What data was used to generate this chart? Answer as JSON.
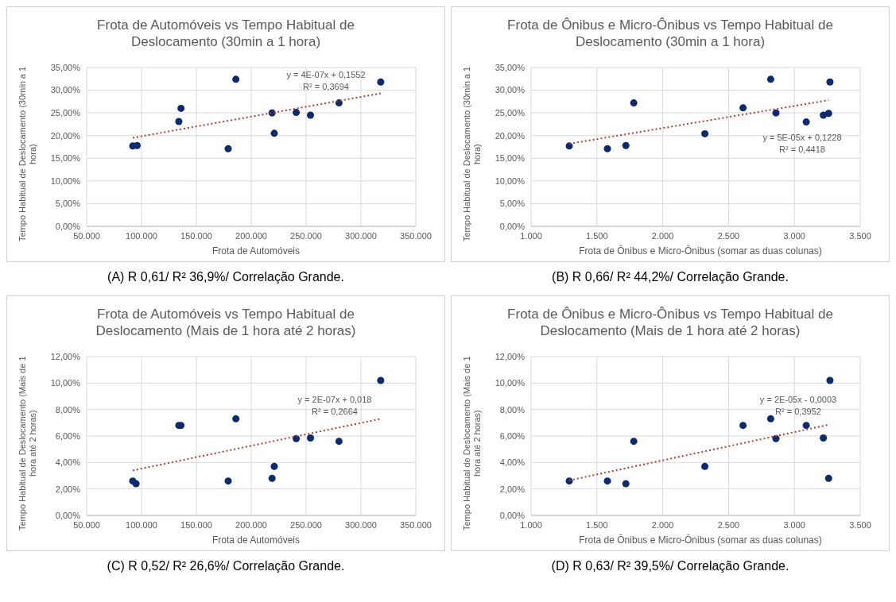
{
  "chart_data": [
    {
      "type": "scatter",
      "title": "Frota de Automóveis vs Tempo Habitual de Deslocamento (30min a 1 hora)",
      "xlabel": "Frota de Automóveis",
      "ylabel": "Tempo Habitual de Deslocamento (30min a 1 hora)",
      "grid": true,
      "xlim": [
        50000,
        350000
      ],
      "xticks": [
        {
          "value": 50000,
          "label": "50.000"
        },
        {
          "value": 100000,
          "label": "100.000"
        },
        {
          "value": 150000,
          "label": "150.000"
        },
        {
          "value": 200000,
          "label": "200.000"
        },
        {
          "value": 250000,
          "label": "250.000"
        },
        {
          "value": 300000,
          "label": "300.000"
        },
        {
          "value": 350000,
          "label": "350.000"
        }
      ],
      "ylim": [
        0,
        35
      ],
      "yticks": [
        {
          "value": 0,
          "label": "0,00%"
        },
        {
          "value": 5,
          "label": "5,00%"
        },
        {
          "value": 10,
          "label": "10,00%"
        },
        {
          "value": 15,
          "label": "15,00%"
        },
        {
          "value": 20,
          "label": "20,00%"
        },
        {
          "value": 25,
          "label": "25,00%"
        },
        {
          "value": 30,
          "label": "30,00%"
        },
        {
          "value": 35,
          "label": "35,00%"
        }
      ],
      "series": [
        {
          "marker": "circle",
          "color": "#0b2a6f",
          "x": [
            92000,
            96000,
            134000,
            136000,
            179000,
            186000,
            219000,
            221000,
            241000,
            254000,
            280000,
            318000
          ],
          "values": [
            17.7,
            17.8,
            23.1,
            26.0,
            17.1,
            32.4,
            25.0,
            20.5,
            25.1,
            24.5,
            27.2,
            31.8
          ]
        },
        {
          "type": "line",
          "line_style": "dotted",
          "color": "#c0392b",
          "x": [
            92000,
            318000
          ],
          "values": [
            19.5,
            29.3
          ]
        }
      ],
      "annotations": [
        "y = 4E-07x + 0,1552",
        "R² = 0,3694",
        "(A) R 0,61/ R² 36,9%/ Correlação Grande."
      ]
    },
    {
      "type": "scatter",
      "title": "Frota de Ônibus e Micro-Ônibus vs Tempo Habitual de Deslocamento (30min a 1 hora)",
      "xlabel": "Frota de Ônibus e Micro-Ônibus (somar as duas colunas)",
      "ylabel": "Tempo Habitual de Deslocamento (30min a 1 hora)",
      "grid": true,
      "xlim": [
        1000,
        3500
      ],
      "xticks": [
        {
          "value": 1000,
          "label": "1.000"
        },
        {
          "value": 1500,
          "label": "1.500"
        },
        {
          "value": 2000,
          "label": "2.000"
        },
        {
          "value": 2500,
          "label": "2.500"
        },
        {
          "value": 3000,
          "label": "3.000"
        },
        {
          "value": 3500,
          "label": "3.500"
        }
      ],
      "ylim": [
        0,
        35
      ],
      "yticks": [
        {
          "value": 0,
          "label": "0,00%"
        },
        {
          "value": 5,
          "label": "5,00%"
        },
        {
          "value": 10,
          "label": "10,00%"
        },
        {
          "value": 15,
          "label": "15,00%"
        },
        {
          "value": 20,
          "label": "20,00%"
        },
        {
          "value": 25,
          "label": "25,00%"
        },
        {
          "value": 30,
          "label": "30,00%"
        },
        {
          "value": 35,
          "label": "35,00%"
        }
      ],
      "series": [
        {
          "marker": "circle",
          "color": "#0b2a6f",
          "x": [
            1290,
            1580,
            1720,
            1780,
            2320,
            2610,
            2820,
            2860,
            3090,
            3220,
            3260,
            3270
          ],
          "values": [
            17.7,
            17.1,
            17.8,
            27.2,
            20.4,
            26.1,
            32.4,
            25.0,
            23.0,
            24.5,
            24.9,
            31.8
          ]
        },
        {
          "type": "line",
          "line_style": "dotted",
          "color": "#c0392b",
          "x": [
            1290,
            3260
          ],
          "values": [
            18.2,
            27.8
          ]
        }
      ],
      "annotations": [
        "y = 5E-05x + 0,1228",
        "R² = 0,4418",
        "(B) R 0,66/ R² 44,2%/ Correlação Grande."
      ]
    },
    {
      "type": "scatter",
      "title": "Frota de Automóveis vs Tempo Habitual de Deslocamento (Mais de 1 hora até 2 horas)",
      "xlabel": "Frota de Automóveis",
      "ylabel": "Tempo Habitual de Deslocamento (Mais de 1 hora até 2 horas)",
      "grid": true,
      "xlim": [
        50000,
        350000
      ],
      "xticks": [
        {
          "value": 50000,
          "label": "50.000"
        },
        {
          "value": 100000,
          "label": "100.000"
        },
        {
          "value": 150000,
          "label": "150.000"
        },
        {
          "value": 200000,
          "label": "200.000"
        },
        {
          "value": 250000,
          "label": "250.000"
        },
        {
          "value": 300000,
          "label": "300.000"
        },
        {
          "value": 350000,
          "label": "350.000"
        }
      ],
      "ylim": [
        0,
        12
      ],
      "yticks": [
        {
          "value": 0,
          "label": "0,00%"
        },
        {
          "value": 2,
          "label": "2,00%"
        },
        {
          "value": 4,
          "label": "4,00%"
        },
        {
          "value": 6,
          "label": "6,00%"
        },
        {
          "value": 8,
          "label": "8,00%"
        },
        {
          "value": 10,
          "label": "10,00%"
        },
        {
          "value": 12,
          "label": "12,00%"
        }
      ],
      "series": [
        {
          "marker": "circle",
          "color": "#0b2a6f",
          "x": [
            92000,
            95000,
            134000,
            136000,
            179000,
            186000,
            219000,
            221000,
            241000,
            254000,
            280000,
            318000
          ],
          "values": [
            2.6,
            2.4,
            6.8,
            6.8,
            2.6,
            7.3,
            2.8,
            3.7,
            5.8,
            5.85,
            5.6,
            10.2
          ]
        },
        {
          "type": "line",
          "line_style": "dotted",
          "color": "#c0392b",
          "x": [
            92000,
            318000
          ],
          "values": [
            3.4,
            7.3
          ]
        }
      ],
      "annotations": [
        "y = 2E-07x + 0,018",
        "R² = 0,2664",
        "(C) R 0,52/ R² 26,6%/ Correlação Grande."
      ]
    },
    {
      "type": "scatter",
      "title": "Frota de Ônibus e Micro-Ônibus vs Tempo Habitual de Deslocamento (Mais de 1 hora até 2 horas)",
      "xlabel": "Frota de Ônibus e Micro-Ônibus (somar as duas colunas)",
      "ylabel": "Tempo Habitual de Deslocamento (Mais de 1 hora até 2 horas)",
      "grid": true,
      "xlim": [
        1000,
        3500
      ],
      "xticks": [
        {
          "value": 1000,
          "label": "1.000"
        },
        {
          "value": 1500,
          "label": "1.500"
        },
        {
          "value": 2000,
          "label": "2.000"
        },
        {
          "value": 2500,
          "label": "2.500"
        },
        {
          "value": 3000,
          "label": "3.000"
        },
        {
          "value": 3500,
          "label": "3.500"
        }
      ],
      "ylim": [
        0,
        12
      ],
      "yticks": [
        {
          "value": 0,
          "label": "0,00%"
        },
        {
          "value": 2,
          "label": "2,00%"
        },
        {
          "value": 4,
          "label": "4,00%"
        },
        {
          "value": 6,
          "label": "6,00%"
        },
        {
          "value": 8,
          "label": "8,00%"
        },
        {
          "value": 10,
          "label": "10,00%"
        },
        {
          "value": 12,
          "label": "12,00%"
        }
      ],
      "series": [
        {
          "marker": "circle",
          "color": "#0b2a6f",
          "x": [
            1290,
            1580,
            1720,
            1780,
            2320,
            2610,
            2820,
            2860,
            3090,
            3220,
            3260,
            3270
          ],
          "values": [
            2.6,
            2.6,
            2.4,
            5.6,
            3.7,
            6.8,
            7.3,
            5.8,
            6.8,
            5.85,
            2.8,
            10.2
          ]
        },
        {
          "type": "line",
          "line_style": "dotted",
          "color": "#c0392b",
          "x": [
            1290,
            3260
          ],
          "values": [
            2.65,
            6.85
          ]
        }
      ],
      "annotations": [
        "y = 2E-05x - 0,0003",
        "R² = 0,3952",
        "(D) R 0,63/ R² 39,5%/ Correlação Grande."
      ]
    }
  ]
}
